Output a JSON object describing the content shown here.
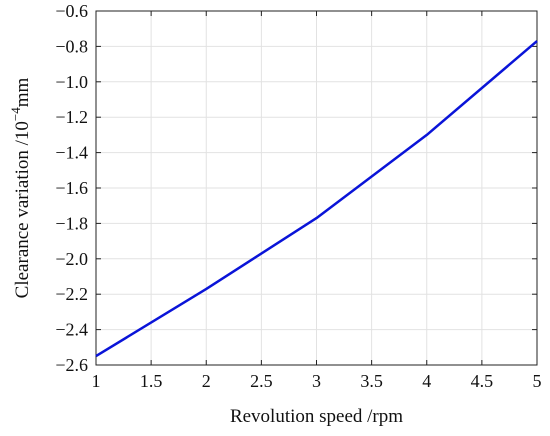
{
  "chart_data": {
    "type": "line",
    "title": "",
    "xlabel": "Revolution speed /rpm",
    "ylabel_prefix": "Clearance variation /10",
    "ylabel_exponent": "−4",
    "ylabel_suffix": "mm",
    "xlim": [
      1,
      5
    ],
    "ylim": [
      -2.6,
      -0.6
    ],
    "grid": true,
    "xticks": [
      1,
      1.5,
      2,
      2.5,
      3,
      3.5,
      4,
      4.5,
      5
    ],
    "xtick_labels": [
      "1",
      "1.5",
      "2",
      "2.5",
      "3",
      "3.5",
      "4",
      "4.5",
      "5"
    ],
    "yticks": [
      -2.6,
      -2.4,
      -2.2,
      -2.0,
      -1.8,
      -1.6,
      -1.4,
      -1.2,
      -1.0,
      -0.8,
      -0.6
    ],
    "ytick_labels": [
      "−2.6",
      "−2.4",
      "−2.2",
      "−2.0",
      "−1.8",
      "−1.6",
      "−1.4",
      "−1.2",
      "−1.0",
      "−0.8",
      "−0.6"
    ],
    "series": [
      {
        "color": "#0a14d8",
        "x": [
          1,
          2,
          3,
          4,
          5
        ],
        "y": [
          -2.55,
          -2.17,
          -1.77,
          -1.3,
          -0.77
        ]
      }
    ]
  }
}
